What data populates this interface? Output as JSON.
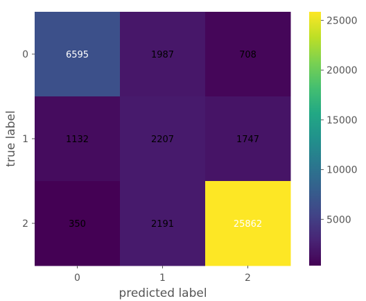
{
  "chart_data": {
    "type": "heatmap",
    "title": "",
    "xlabel": "predicted label",
    "ylabel": "true label",
    "x_categories": [
      "0",
      "1",
      "2"
    ],
    "y_categories": [
      "0",
      "1",
      "2"
    ],
    "matrix": [
      [
        6595,
        1987,
        708
      ],
      [
        1132,
        2207,
        1747
      ],
      [
        350,
        2191,
        25862
      ]
    ],
    "colormap": "viridis",
    "colorbar": {
      "range": [
        350,
        25862
      ],
      "ticks": [
        5000,
        10000,
        15000,
        20000,
        25000
      ],
      "tick_labels": [
        "5000",
        "10000",
        "15000",
        "20000",
        "25000"
      ]
    },
    "grid": false,
    "text_colors": {
      "dark": "#000000",
      "light": "#ffffff"
    }
  }
}
